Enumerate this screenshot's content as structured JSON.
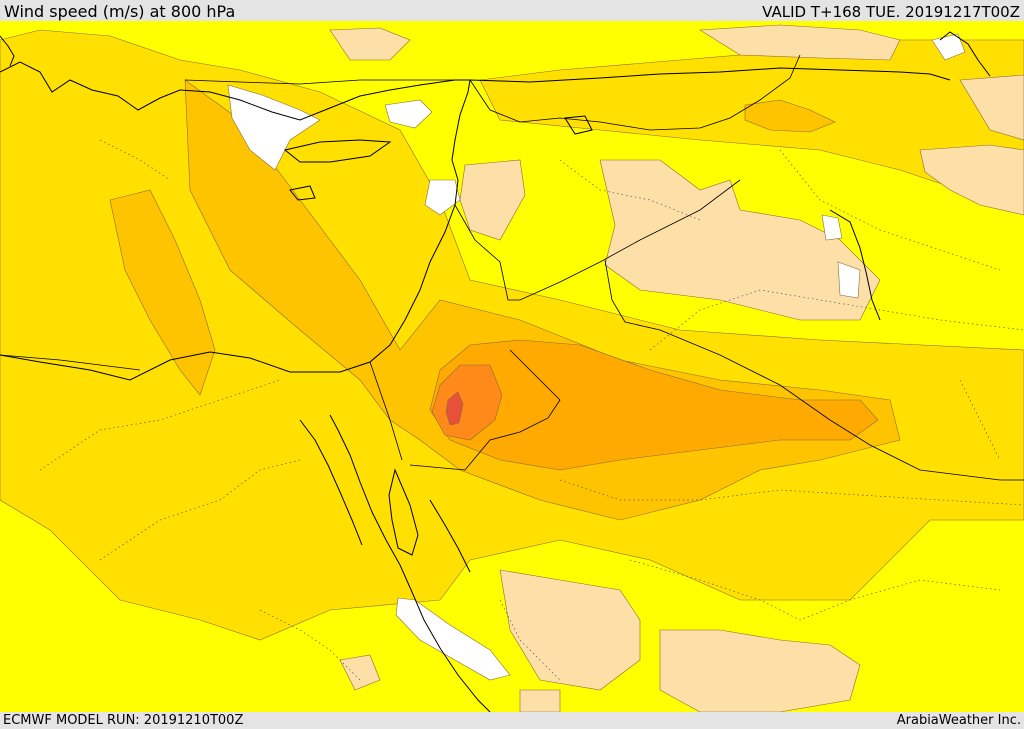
{
  "header": {
    "title": "Wind speed (m/s) at 800 hPa",
    "valid_time": "VALID T+168 TUE. 20191217T00Z"
  },
  "footer": {
    "model_run": "ECMWF MODEL RUN: 20191210T00Z",
    "credit": "ArabiaWeather Inc."
  },
  "map": {
    "variable": "wind speed",
    "level_hpa": 800,
    "units": "m/s",
    "colors": {
      "calm": "#ffffff",
      "low": "#fde0a8",
      "moderate": "#ffff00",
      "elevated": "#ffe000",
      "high": "#ffc400",
      "higher": "#ffaa00",
      "peak": "#ff8a1a",
      "max": "#e8503a",
      "coast_and_border": "#000000"
    }
  }
}
